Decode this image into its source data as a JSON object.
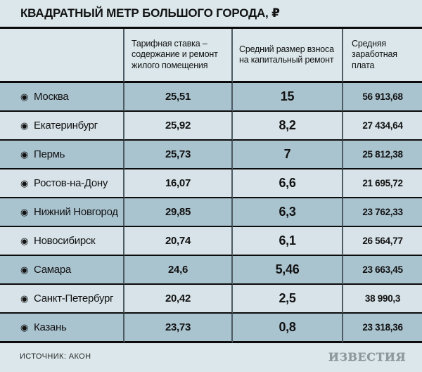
{
  "title": "КВАДРАТНЫЙ МЕТР БОЛЬШОГО ГОРОДА, ₽",
  "icons": {
    "bullet": "◉"
  },
  "table": {
    "columns": [
      "Тарифная ставка – содержание и ремонт жилого помещения",
      "Средний размер взноса на капитальный ремонт",
      "Средняя заработная плата"
    ],
    "rows": [
      {
        "city": "Москва",
        "tariff": "25,51",
        "contribution": "15",
        "salary": "56 913,68"
      },
      {
        "city": "Екатеринбург",
        "tariff": "25,92",
        "contribution": "8,2",
        "salary": "27 434,64"
      },
      {
        "city": "Пермь",
        "tariff": "25,73",
        "contribution": "7",
        "salary": "25 812,38"
      },
      {
        "city": "Ростов-на-Дону",
        "tariff": "16,07",
        "contribution": "6,6",
        "salary": "21 695,72"
      },
      {
        "city": "Нижний Новгород",
        "tariff": "29,85",
        "contribution": "6,3",
        "salary": "23 762,33"
      },
      {
        "city": "Новосибирск",
        "tariff": "20,74",
        "contribution": "6,1",
        "salary": "26 564,77"
      },
      {
        "city": "Самара",
        "tariff": "24,6",
        "contribution": "5,46",
        "salary": "23 663,45"
      },
      {
        "city": "Санкт-Петербург",
        "tariff": "20,42",
        "contribution": "2,5",
        "salary": "38 990,3"
      },
      {
        "city": "Казань",
        "tariff": "23,73",
        "contribution": "0,8",
        "salary": "23 318,36"
      }
    ]
  },
  "footer": {
    "source": "ИСТОЧНИК: АКОН",
    "logo": "ИЗВЕСТИЯ"
  },
  "colors": {
    "background": "#dbe7eb",
    "row_dark": "#a9c3cf",
    "row_light": "#d7e3e8",
    "separator": "#0b0b0b",
    "column_line": "#4d5b63",
    "logo_gray": "#8d979c"
  },
  "chart_data": {
    "type": "table",
    "title": "КВАДРАТНЫЙ МЕТР БОЛЬШОГО ГОРОДА, ₽",
    "categories": [
      "Москва",
      "Екатеринбург",
      "Пермь",
      "Ростов-на-Дону",
      "Нижний Новгород",
      "Новосибирск",
      "Самара",
      "Санкт-Петербург",
      "Казань"
    ],
    "series": [
      {
        "name": "Тарифная ставка – содержание и ремонт жилого помещения",
        "values": [
          25.51,
          25.92,
          25.73,
          16.07,
          29.85,
          20.74,
          24.6,
          20.42,
          23.73
        ]
      },
      {
        "name": "Средний размер взноса на капитальный ремонт",
        "values": [
          15,
          8.2,
          7,
          6.6,
          6.3,
          6.1,
          5.46,
          2.5,
          0.8
        ]
      },
      {
        "name": "Средняя заработная плата",
        "values": [
          56913.68,
          27434.64,
          25812.38,
          21695.72,
          23762.33,
          26564.77,
          23663.45,
          38990.3,
          23318.36
        ]
      }
    ],
    "source": "АКОН",
    "legend_position": "none",
    "grid": true
  }
}
